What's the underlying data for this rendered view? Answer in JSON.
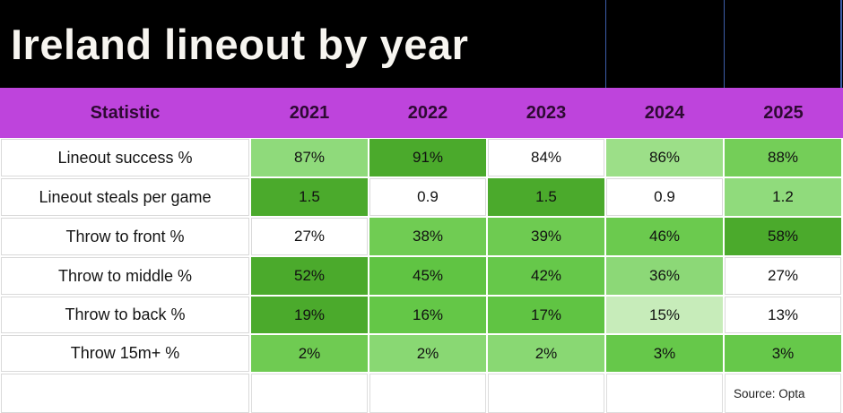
{
  "title": "Ireland lineout by year",
  "source_note": "Source: Opta",
  "colors": {
    "title_bg": "#000000",
    "title_text": "#f7f5f0",
    "header_bg": "#be44dc",
    "header_text": "#2e0a33",
    "accent_line": "#3d5ea9",
    "grid_line": "#d9d9d9",
    "scale_max_green": "#4baa2c",
    "scale_min": "#ffffff"
  },
  "table": {
    "columns": [
      "Statistic",
      "2021",
      "2022",
      "2023",
      "2024",
      "2025"
    ],
    "rows": [
      {
        "label": "Lineout success %",
        "values": [
          "87%",
          "91%",
          "84%",
          "86%",
          "88%"
        ],
        "cell_colors": [
          "#8fda7b",
          "#4baa2c",
          "#ffffff",
          "#9cdf88",
          "#74ce58"
        ]
      },
      {
        "label": "Lineout steals per game",
        "values": [
          "1.5",
          "0.9",
          "1.5",
          "0.9",
          "1.2"
        ],
        "cell_colors": [
          "#4baa2c",
          "#ffffff",
          "#4baa2c",
          "#ffffff",
          "#90db7c"
        ]
      },
      {
        "label": "Throw to front %",
        "values": [
          "27%",
          "38%",
          "39%",
          "46%",
          "58%"
        ],
        "cell_colors": [
          "#ffffff",
          "#70cc53",
          "#6ecb51",
          "#6bca4e",
          "#4baa2c"
        ]
      },
      {
        "label": "Throw to middle %",
        "values": [
          "52%",
          "45%",
          "42%",
          "36%",
          "27%"
        ],
        "cell_colors": [
          "#4baa2c",
          "#60c443",
          "#66c84a",
          "#8cd877",
          "#ffffff"
        ]
      },
      {
        "label": "Throw to back %",
        "values": [
          "19%",
          "16%",
          "17%",
          "15%",
          "13%"
        ],
        "cell_colors": [
          "#4baa2c",
          "#64c747",
          "#60c443",
          "#c7ecba",
          "#ffffff"
        ]
      },
      {
        "label": "Throw 15m+ %",
        "values": [
          "2%",
          "2%",
          "2%",
          "3%",
          "3%"
        ],
        "cell_colors": [
          "#6fcb52",
          "#89d873",
          "#89d873",
          "#66c84a",
          "#66c84a"
        ]
      }
    ]
  },
  "chart_data": {
    "type": "table",
    "title": "Ireland lineout by year",
    "columns": [
      "Statistic",
      "2021",
      "2022",
      "2023",
      "2024",
      "2025"
    ],
    "rows": [
      {
        "label": "Lineout success %",
        "values": [
          87,
          91,
          84,
          86,
          88
        ],
        "unit": "%"
      },
      {
        "label": "Lineout steals per game",
        "values": [
          1.5,
          0.9,
          1.5,
          0.9,
          1.2
        ],
        "unit": ""
      },
      {
        "label": "Throw to front %",
        "values": [
          27,
          38,
          39,
          46,
          58
        ],
        "unit": "%"
      },
      {
        "label": "Throw to middle %",
        "values": [
          52,
          45,
          42,
          36,
          27
        ],
        "unit": "%"
      },
      {
        "label": "Throw to back %",
        "values": [
          19,
          16,
          17,
          15,
          13
        ],
        "unit": "%"
      },
      {
        "label": "Throw 15m+ %",
        "values": [
          2,
          2,
          2,
          3,
          3
        ],
        "unit": "%"
      }
    ],
    "note": "Source: Opta",
    "style": "per-row green heatmap, white = lowest value in row, dark green = highest"
  }
}
